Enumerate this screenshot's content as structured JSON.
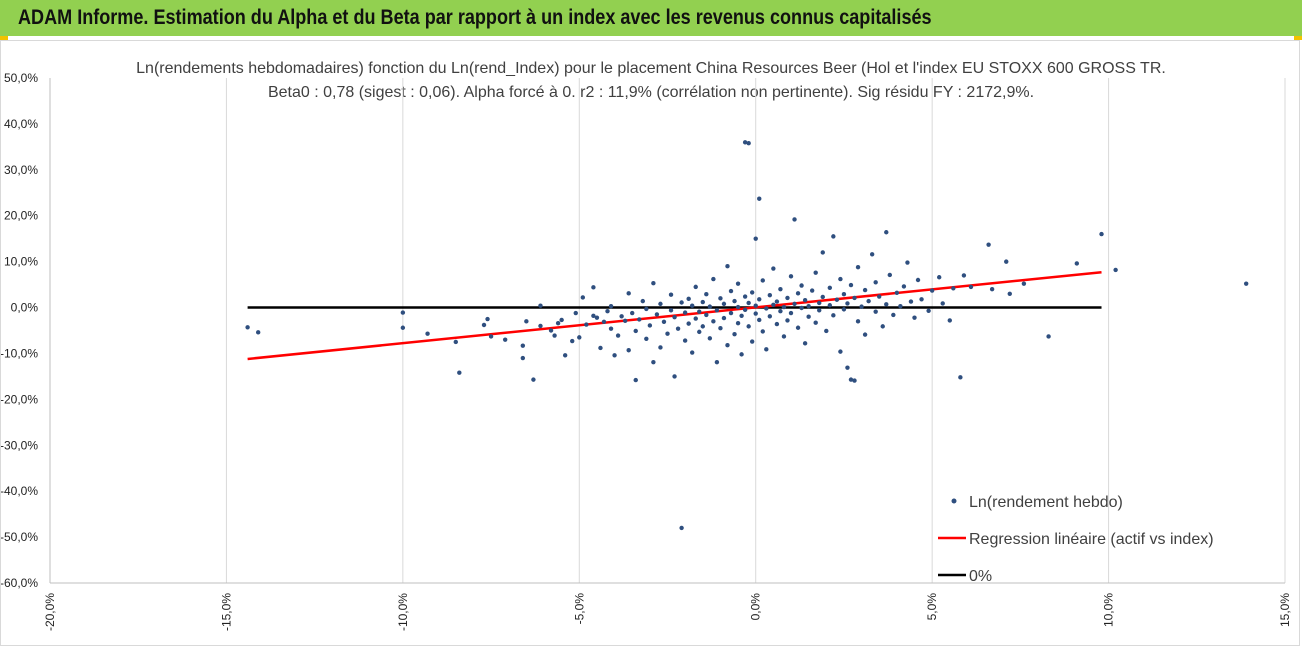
{
  "banner": {
    "title": "ADAM Informe. Estimation du Alpha et du Beta par rapport à un index avec les revenus connus capitalisés",
    "color": "#92d050"
  },
  "chart_data": {
    "type": "scatter",
    "title": "Ln(rendements hebdomadaires) fonction du Ln(rend_Index) pour le placement China Resources Beer (Hol et l'index EU STOXX 600 GROSS TR.",
    "subtitle": "Beta0 : 0,78 (sigest : 0,06). Alpha forcé à 0. r2 : 11,9% (corrélation non pertinente). Sig résidu FY : 2172,9%.",
    "xlabel": "",
    "ylabel": "",
    "xlim": [
      -0.2,
      0.15
    ],
    "ylim": [
      -0.6,
      0.5
    ],
    "x_ticks": [
      -0.2,
      -0.15,
      -0.1,
      -0.05,
      0.0,
      0.05,
      0.1,
      0.15
    ],
    "x_tick_labels": [
      "-20,0%",
      "-15,0%",
      "-10,0%",
      "-5,0%",
      "0,0%",
      "5,0%",
      "10,0%",
      "15,0%"
    ],
    "y_ticks": [
      0.5,
      0.4,
      0.3,
      0.2,
      0.1,
      0.0,
      -0.1,
      -0.2,
      -0.3,
      -0.4,
      -0.5,
      -0.6
    ],
    "y_tick_labels": [
      "50,0%",
      "40,0%",
      "30,0%",
      "20,0%",
      "10,0%",
      "0,0%",
      "-10,0%",
      "-20,0%",
      "-30,0%",
      "-40,0%",
      "-50,0%",
      "-60,0%"
    ],
    "grid": "vertical",
    "legend_position": "bottom-right",
    "series": [
      {
        "name": "Ln(rendement hebdo)",
        "type": "scatter",
        "color": "#2f4f7f",
        "points": [
          [
            -0.144,
            -0.043
          ],
          [
            -0.141,
            -0.054
          ],
          [
            -0.1,
            -0.011
          ],
          [
            -0.1,
            -0.044
          ],
          [
            -0.093,
            -0.057
          ],
          [
            -0.085,
            -0.075
          ],
          [
            -0.084,
            -0.142
          ],
          [
            -0.077,
            -0.038
          ],
          [
            -0.076,
            -0.025
          ],
          [
            -0.075,
            -0.063
          ],
          [
            -0.071,
            -0.07
          ],
          [
            -0.066,
            -0.11
          ],
          [
            -0.066,
            -0.083
          ],
          [
            -0.065,
            -0.03
          ],
          [
            -0.063,
            -0.157
          ],
          [
            -0.061,
            0.004
          ],
          [
            -0.061,
            -0.04
          ],
          [
            -0.058,
            -0.05
          ],
          [
            -0.057,
            -0.061
          ],
          [
            -0.056,
            -0.034
          ],
          [
            -0.055,
            -0.027
          ],
          [
            -0.054,
            -0.104
          ],
          [
            -0.052,
            -0.073
          ],
          [
            -0.051,
            -0.012
          ],
          [
            -0.05,
            -0.065
          ],
          [
            -0.049,
            0.022
          ],
          [
            -0.048,
            -0.037
          ],
          [
            -0.046,
            -0.018
          ],
          [
            -0.046,
            0.044
          ],
          [
            -0.045,
            -0.022
          ],
          [
            -0.044,
            -0.088
          ],
          [
            -0.043,
            -0.031
          ],
          [
            -0.042,
            -0.008
          ],
          [
            -0.041,
            0.003
          ],
          [
            -0.041,
            -0.046
          ],
          [
            -0.04,
            -0.104
          ],
          [
            -0.039,
            -0.061
          ],
          [
            -0.038,
            -0.019
          ],
          [
            -0.037,
            -0.029
          ],
          [
            -0.036,
            -0.093
          ],
          [
            -0.036,
            0.031
          ],
          [
            -0.035,
            -0.012
          ],
          [
            -0.034,
            -0.051
          ],
          [
            -0.034,
            -0.158
          ],
          [
            -0.033,
            -0.026
          ],
          [
            -0.032,
            0.014
          ],
          [
            -0.031,
            -0.003
          ],
          [
            -0.031,
            -0.068
          ],
          [
            -0.03,
            -0.039
          ],
          [
            -0.029,
            0.053
          ],
          [
            -0.029,
            -0.119
          ],
          [
            -0.028,
            -0.015
          ],
          [
            -0.027,
            -0.087
          ],
          [
            -0.027,
            0.008
          ],
          [
            -0.026,
            -0.031
          ],
          [
            -0.025,
            -0.057
          ],
          [
            -0.024,
            -0.006
          ],
          [
            -0.024,
            0.028
          ],
          [
            -0.023,
            -0.15
          ],
          [
            -0.023,
            -0.021
          ],
          [
            -0.022,
            -0.046
          ],
          [
            -0.021,
            0.011
          ],
          [
            -0.021,
            -0.48
          ],
          [
            -0.02,
            -0.072
          ],
          [
            -0.02,
            -0.011
          ],
          [
            -0.019,
            0.019
          ],
          [
            -0.019,
            -0.035
          ],
          [
            -0.018,
            -0.098
          ],
          [
            -0.018,
            0.004
          ],
          [
            -0.017,
            -0.024
          ],
          [
            -0.017,
            0.045
          ],
          [
            -0.016,
            -0.053
          ],
          [
            -0.016,
            -0.009
          ],
          [
            -0.015,
            0.012
          ],
          [
            -0.015,
            -0.041
          ],
          [
            -0.014,
            0.029
          ],
          [
            -0.014,
            -0.016
          ],
          [
            -0.013,
            -0.067
          ],
          [
            -0.013,
            0.002
          ],
          [
            -0.012,
            -0.03
          ],
          [
            -0.012,
            0.062
          ],
          [
            -0.011,
            -0.119
          ],
          [
            -0.011,
            -0.006
          ],
          [
            -0.01,
            0.02
          ],
          [
            -0.01,
            -0.045
          ],
          [
            -0.009,
            0.008
          ],
          [
            -0.009,
            -0.023
          ],
          [
            -0.008,
            0.09
          ],
          [
            -0.008,
            -0.082
          ],
          [
            -0.007,
            0.036
          ],
          [
            -0.007,
            -0.012
          ],
          [
            -0.006,
            -0.058
          ],
          [
            -0.006,
            0.014
          ],
          [
            -0.005,
            0.001
          ],
          [
            -0.005,
            -0.034
          ],
          [
            -0.005,
            0.052
          ],
          [
            -0.004,
            -0.102
          ],
          [
            -0.004,
            -0.018
          ],
          [
            -0.003,
            0.024
          ],
          [
            -0.003,
            -0.005
          ],
          [
            -0.003,
            0.36
          ],
          [
            -0.002,
            0.358
          ],
          [
            -0.002,
            -0.041
          ],
          [
            -0.002,
            0.01
          ],
          [
            -0.001,
            -0.074
          ],
          [
            -0.001,
            0.033
          ],
          [
            0.0,
            -0.013
          ],
          [
            0.0,
            0.15
          ],
          [
            0.0,
            0.004
          ],
          [
            0.001,
            0.237
          ],
          [
            0.001,
            -0.027
          ],
          [
            0.001,
            0.018
          ],
          [
            0.002,
            -0.052
          ],
          [
            0.002,
            0.059
          ],
          [
            0.003,
            -0.002
          ],
          [
            0.003,
            -0.091
          ],
          [
            0.004,
            0.027
          ],
          [
            0.004,
            -0.019
          ],
          [
            0.005,
            0.006
          ],
          [
            0.005,
            0.085
          ],
          [
            0.006,
            -0.036
          ],
          [
            0.006,
            0.013
          ],
          [
            0.007,
            -0.008
          ],
          [
            0.007,
            0.04
          ],
          [
            0.008,
            -0.063
          ],
          [
            0.008,
            0.001
          ],
          [
            0.009,
            0.021
          ],
          [
            0.009,
            -0.028
          ],
          [
            0.01,
            0.068
          ],
          [
            0.01,
            -0.012
          ],
          [
            0.011,
            0.008
          ],
          [
            0.011,
            0.192
          ],
          [
            0.012,
            -0.044
          ],
          [
            0.012,
            0.031
          ],
          [
            0.013,
            -0.001
          ],
          [
            0.013,
            0.048
          ],
          [
            0.014,
            -0.078
          ],
          [
            0.014,
            0.016
          ],
          [
            0.015,
            -0.02
          ],
          [
            0.015,
            0.003
          ],
          [
            0.016,
            0.037
          ],
          [
            0.017,
            -0.033
          ],
          [
            0.017,
            0.076
          ],
          [
            0.018,
            0.01
          ],
          [
            0.018,
            -0.006
          ],
          [
            0.019,
            0.023
          ],
          [
            0.019,
            0.12
          ],
          [
            0.02,
            -0.051
          ],
          [
            0.021,
            0.005
          ],
          [
            0.021,
            0.043
          ],
          [
            0.022,
            -0.017
          ],
          [
            0.022,
            0.155
          ],
          [
            0.023,
            0.017
          ],
          [
            0.024,
            -0.096
          ],
          [
            0.024,
            0.062
          ],
          [
            0.025,
            -0.004
          ],
          [
            0.025,
            0.029
          ],
          [
            0.026,
            -0.131
          ],
          [
            0.026,
            0.009
          ],
          [
            0.027,
            -0.157
          ],
          [
            0.027,
            0.049
          ],
          [
            0.028,
            -0.159
          ],
          [
            0.028,
            0.021
          ],
          [
            0.029,
            -0.03
          ],
          [
            0.029,
            0.088
          ],
          [
            0.03,
            0.002
          ],
          [
            0.031,
            0.038
          ],
          [
            0.031,
            -0.059
          ],
          [
            0.032,
            0.014
          ],
          [
            0.033,
            0.116
          ],
          [
            0.034,
            -0.009
          ],
          [
            0.034,
            0.055
          ],
          [
            0.035,
            0.024
          ],
          [
            0.036,
            -0.041
          ],
          [
            0.037,
            0.164
          ],
          [
            0.037,
            0.007
          ],
          [
            0.038,
            0.071
          ],
          [
            0.039,
            -0.016
          ],
          [
            0.04,
            0.032
          ],
          [
            0.041,
            0.003
          ],
          [
            0.042,
            0.046
          ],
          [
            0.043,
            0.098
          ],
          [
            0.044,
            0.013
          ],
          [
            0.045,
            -0.022
          ],
          [
            0.046,
            0.06
          ],
          [
            0.047,
            0.018
          ],
          [
            0.049,
            -0.007
          ],
          [
            0.05,
            0.037
          ],
          [
            0.052,
            0.066
          ],
          [
            0.053,
            0.009
          ],
          [
            0.055,
            -0.028
          ],
          [
            0.056,
            0.042
          ],
          [
            0.058,
            -0.152
          ],
          [
            0.059,
            0.07
          ],
          [
            0.061,
            0.045
          ],
          [
            0.066,
            0.137
          ],
          [
            0.067,
            0.04
          ],
          [
            0.071,
            0.1
          ],
          [
            0.072,
            0.03
          ],
          [
            0.076,
            0.052
          ],
          [
            0.083,
            -0.063
          ],
          [
            0.091,
            0.096
          ],
          [
            0.098,
            0.16
          ],
          [
            0.102,
            0.082
          ],
          [
            0.139,
            0.052
          ]
        ]
      },
      {
        "name": "Regression linéaire (actif vs index)",
        "type": "line",
        "color": "#ff0000",
        "points": [
          [
            -0.144,
            -0.112
          ],
          [
            0.098,
            0.077
          ]
        ]
      },
      {
        "name": "0%",
        "type": "line",
        "color": "#000000",
        "points": [
          [
            -0.144,
            0.0
          ],
          [
            0.098,
            0.0
          ]
        ]
      }
    ]
  }
}
